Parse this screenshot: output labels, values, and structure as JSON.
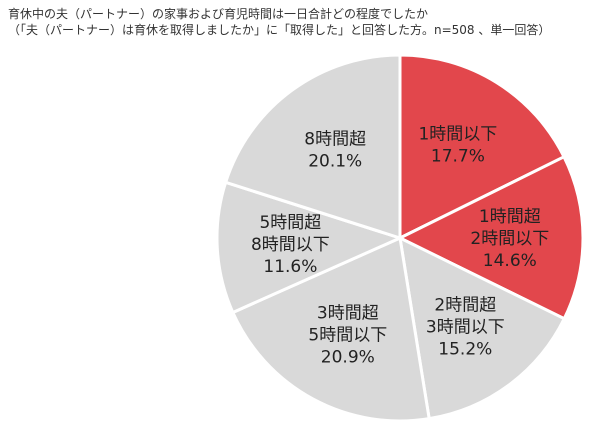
{
  "title": {
    "line1": "育休中の夫（パートナー）の家事および育児時間は一日合計どの程度でしたか",
    "line2": "（「夫（パートナー）は育休を取得しましたか」に「取得した」と回答した方。n=508 、単一回答）"
  },
  "colors": {
    "highlight": "#E2474C",
    "neutral": "#D9D9D9",
    "border": "#FFFFFF"
  },
  "chart_data": {
    "type": "pie",
    "title": "育休中の夫（パートナー）の家事および育児時間は一日合計どの程度でしたか",
    "start_angle_deg": 0,
    "direction": "clockwise",
    "slices": [
      {
        "label_lines": [
          "1時間以下"
        ],
        "value": 17.7,
        "value_label": "17.7%",
        "highlight": true
      },
      {
        "label_lines": [
          "1時間超",
          "2時間以下"
        ],
        "value": 14.6,
        "value_label": "14.6%",
        "highlight": true
      },
      {
        "label_lines": [
          "2時間超",
          "3時間以下"
        ],
        "value": 15.2,
        "value_label": "15.2%",
        "highlight": false
      },
      {
        "label_lines": [
          "3時間超",
          "5時間以下"
        ],
        "value": 20.9,
        "value_label": "20.9%",
        "highlight": false
      },
      {
        "label_lines": [
          "5時間超",
          "8時間以下"
        ],
        "value": 11.6,
        "value_label": "11.6%",
        "highlight": false
      },
      {
        "label_lines": [
          "8時間超"
        ],
        "value": 20.1,
        "value_label": "20.1%",
        "highlight": false
      }
    ]
  }
}
